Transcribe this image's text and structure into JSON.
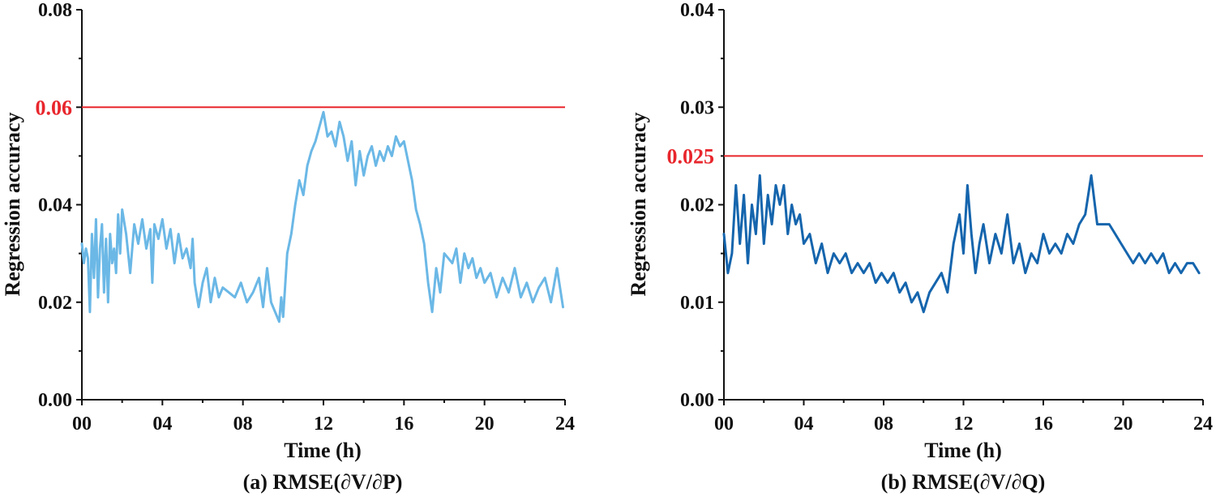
{
  "colors": {
    "threshold": "#e8262c",
    "axis": "#111111"
  },
  "chart_data": [
    {
      "type": "line",
      "caption": "(a) RMSE(∂V/∂P)",
      "xlabel": "Time (h)",
      "ylabel": "Regression accuracy",
      "xlim": [
        0,
        24
      ],
      "ylim": [
        0,
        0.08
      ],
      "xticks": [
        "00",
        "04",
        "08",
        "12",
        "16",
        "20",
        "24"
      ],
      "yticks": [
        "0.00",
        "0.02",
        "0.04",
        "0.06",
        "0.08"
      ],
      "threshold": {
        "value": 0.06,
        "label": "0.06"
      },
      "grid": false,
      "series": [
        {
          "color": "#6bb8e6",
          "x": [
            0.0,
            0.1,
            0.2,
            0.3,
            0.4,
            0.5,
            0.6,
            0.7,
            0.8,
            0.9,
            1.0,
            1.1,
            1.2,
            1.3,
            1.4,
            1.5,
            1.6,
            1.7,
            1.8,
            1.9,
            2.0,
            2.2,
            2.4,
            2.6,
            2.8,
            3.0,
            3.2,
            3.4,
            3.5,
            3.6,
            3.8,
            4.0,
            4.2,
            4.4,
            4.6,
            4.8,
            5.0,
            5.2,
            5.4,
            5.5,
            5.6,
            5.8,
            6.0,
            6.2,
            6.4,
            6.6,
            6.8,
            7.0,
            7.3,
            7.6,
            7.9,
            8.2,
            8.5,
            8.8,
            9.0,
            9.2,
            9.4,
            9.6,
            9.8,
            9.9,
            10.0,
            10.2,
            10.4,
            10.6,
            10.8,
            11.0,
            11.2,
            11.4,
            11.6,
            11.8,
            12.0,
            12.2,
            12.4,
            12.6,
            12.8,
            13.0,
            13.2,
            13.4,
            13.6,
            13.8,
            14.0,
            14.2,
            14.4,
            14.6,
            14.8,
            15.0,
            15.2,
            15.4,
            15.6,
            15.8,
            16.0,
            16.2,
            16.4,
            16.6,
            16.8,
            17.0,
            17.2,
            17.4,
            17.6,
            17.8,
            18.0,
            18.2,
            18.4,
            18.6,
            18.8,
            19.0,
            19.2,
            19.4,
            19.6,
            19.8,
            20.0,
            20.3,
            20.6,
            20.9,
            21.2,
            21.5,
            21.8,
            22.1,
            22.4,
            22.7,
            23.0,
            23.3,
            23.6,
            23.9
          ],
          "y": [
            0.032,
            0.028,
            0.031,
            0.029,
            0.018,
            0.034,
            0.025,
            0.037,
            0.021,
            0.031,
            0.036,
            0.022,
            0.033,
            0.02,
            0.034,
            0.028,
            0.031,
            0.026,
            0.038,
            0.03,
            0.039,
            0.034,
            0.026,
            0.036,
            0.032,
            0.037,
            0.031,
            0.035,
            0.024,
            0.036,
            0.033,
            0.037,
            0.031,
            0.035,
            0.028,
            0.034,
            0.029,
            0.031,
            0.027,
            0.033,
            0.024,
            0.019,
            0.024,
            0.027,
            0.02,
            0.025,
            0.021,
            0.023,
            0.022,
            0.021,
            0.024,
            0.02,
            0.022,
            0.025,
            0.019,
            0.027,
            0.02,
            0.018,
            0.016,
            0.021,
            0.017,
            0.03,
            0.034,
            0.04,
            0.045,
            0.042,
            0.048,
            0.051,
            0.053,
            0.056,
            0.059,
            0.054,
            0.055,
            0.052,
            0.057,
            0.054,
            0.049,
            0.053,
            0.044,
            0.051,
            0.046,
            0.05,
            0.052,
            0.048,
            0.051,
            0.049,
            0.052,
            0.05,
            0.054,
            0.052,
            0.053,
            0.049,
            0.045,
            0.039,
            0.036,
            0.032,
            0.024,
            0.018,
            0.027,
            0.022,
            0.03,
            0.029,
            0.028,
            0.031,
            0.024,
            0.03,
            0.027,
            0.029,
            0.025,
            0.027,
            0.024,
            0.026,
            0.021,
            0.025,
            0.022,
            0.027,
            0.021,
            0.024,
            0.02,
            0.023,
            0.025,
            0.02,
            0.027,
            0.019
          ]
        }
      ]
    },
    {
      "type": "line",
      "caption": "(b) RMSE(∂V/∂Q)",
      "xlabel": "Time (h)",
      "ylabel": "Regression accuracy",
      "xlim": [
        0,
        24
      ],
      "ylim": [
        0,
        0.04
      ],
      "xticks": [
        "00",
        "04",
        "08",
        "12",
        "16",
        "20",
        "24"
      ],
      "yticks": [
        "0.00",
        "0.01",
        "0.02",
        "0.03",
        "0.04"
      ],
      "threshold": {
        "value": 0.025,
        "label": "0.025"
      },
      "grid": false,
      "series": [
        {
          "color": "#1565ad",
          "x": [
            0.0,
            0.2,
            0.4,
            0.6,
            0.8,
            1.0,
            1.2,
            1.4,
            1.6,
            1.8,
            2.0,
            2.2,
            2.4,
            2.6,
            2.8,
            3.0,
            3.2,
            3.4,
            3.6,
            3.8,
            4.0,
            4.3,
            4.6,
            4.9,
            5.2,
            5.5,
            5.8,
            6.1,
            6.4,
            6.7,
            7.0,
            7.3,
            7.6,
            7.9,
            8.2,
            8.5,
            8.8,
            9.1,
            9.4,
            9.7,
            10.0,
            10.3,
            10.6,
            10.9,
            11.2,
            11.5,
            11.8,
            12.0,
            12.2,
            12.4,
            12.6,
            12.8,
            13.0,
            13.3,
            13.6,
            13.9,
            14.2,
            14.5,
            14.8,
            15.1,
            15.4,
            15.7,
            16.0,
            16.3,
            16.6,
            16.9,
            17.2,
            17.5,
            17.8,
            18.1,
            18.4,
            18.7,
            19.0,
            19.3,
            19.6,
            19.9,
            20.2,
            20.5,
            20.8,
            21.1,
            21.4,
            21.7,
            22.0,
            22.3,
            22.6,
            22.9,
            23.2,
            23.5,
            23.8
          ],
          "y": [
            0.017,
            0.013,
            0.015,
            0.022,
            0.016,
            0.021,
            0.014,
            0.02,
            0.017,
            0.023,
            0.016,
            0.021,
            0.018,
            0.022,
            0.02,
            0.022,
            0.017,
            0.02,
            0.018,
            0.019,
            0.016,
            0.017,
            0.014,
            0.016,
            0.013,
            0.015,
            0.014,
            0.015,
            0.013,
            0.014,
            0.013,
            0.014,
            0.012,
            0.013,
            0.012,
            0.013,
            0.011,
            0.012,
            0.01,
            0.011,
            0.009,
            0.011,
            0.012,
            0.013,
            0.011,
            0.016,
            0.019,
            0.015,
            0.022,
            0.017,
            0.013,
            0.016,
            0.018,
            0.014,
            0.017,
            0.015,
            0.019,
            0.014,
            0.016,
            0.013,
            0.015,
            0.014,
            0.017,
            0.015,
            0.016,
            0.015,
            0.017,
            0.016,
            0.018,
            0.019,
            0.023,
            0.018,
            0.018,
            0.018,
            0.017,
            0.016,
            0.015,
            0.014,
            0.015,
            0.014,
            0.015,
            0.014,
            0.015,
            0.013,
            0.014,
            0.013,
            0.014,
            0.014,
            0.013
          ]
        }
      ]
    }
  ]
}
